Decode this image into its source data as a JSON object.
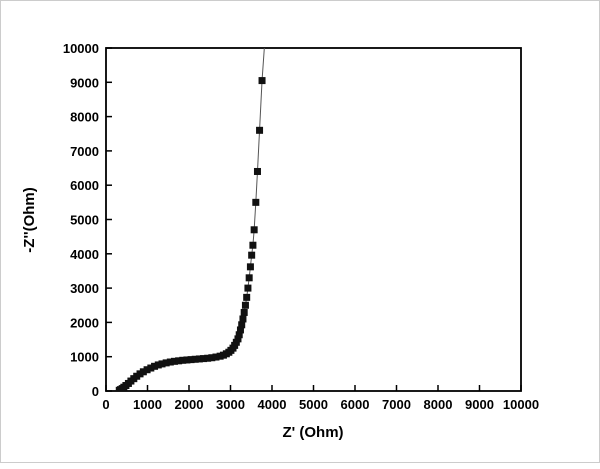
{
  "figure": {
    "background": "#ffffff",
    "frame_color": "#000000"
  },
  "chart_data": {
    "type": "scatter",
    "title": "",
    "xlabel": "Z' (Ohm)",
    "ylabel": "-Z''(Ohm)",
    "xlim": [
      0,
      10000
    ],
    "ylim": [
      0,
      10000
    ],
    "xticks": [
      0,
      1000,
      2000,
      3000,
      4000,
      5000,
      6000,
      7000,
      8000,
      9000,
      10000
    ],
    "yticks": [
      0,
      1000,
      2000,
      3000,
      4000,
      5000,
      6000,
      7000,
      8000,
      9000,
      10000
    ],
    "grid": false,
    "legend": "none",
    "marker": "square",
    "marker_size": 7,
    "marker_color": "#111111",
    "line_color": "#555555",
    "series": [
      {
        "name": "impedance-sweep",
        "points": [
          [
            320,
            20
          ],
          [
            350,
            40
          ],
          [
            390,
            70
          ],
          [
            430,
            110
          ],
          [
            480,
            160
          ],
          [
            540,
            220
          ],
          [
            600,
            290
          ],
          [
            670,
            360
          ],
          [
            740,
            430
          ],
          [
            820,
            500
          ],
          [
            900,
            560
          ],
          [
            990,
            620
          ],
          [
            1080,
            670
          ],
          [
            1170,
            720
          ],
          [
            1260,
            760
          ],
          [
            1350,
            790
          ],
          [
            1450,
            820
          ],
          [
            1550,
            845
          ],
          [
            1650,
            865
          ],
          [
            1750,
            880
          ],
          [
            1850,
            895
          ],
          [
            1950,
            905
          ],
          [
            2050,
            915
          ],
          [
            2150,
            925
          ],
          [
            2250,
            935
          ],
          [
            2350,
            945
          ],
          [
            2450,
            955
          ],
          [
            2550,
            970
          ],
          [
            2650,
            990
          ],
          [
            2750,
            1015
          ],
          [
            2830,
            1045
          ],
          [
            2900,
            1085
          ],
          [
            2960,
            1130
          ],
          [
            3010,
            1185
          ],
          [
            3060,
            1250
          ],
          [
            3100,
            1330
          ],
          [
            3140,
            1420
          ],
          [
            3180,
            1520
          ],
          [
            3210,
            1640
          ],
          [
            3240,
            1780
          ],
          [
            3270,
            1930
          ],
          [
            3300,
            2100
          ],
          [
            3330,
            2290
          ],
          [
            3360,
            2500
          ],
          [
            3390,
            2730
          ],
          [
            3420,
            3000
          ],
          [
            3450,
            3300
          ],
          [
            3480,
            3620
          ],
          [
            3510,
            3960
          ],
          [
            3540,
            4250
          ],
          [
            3570,
            4700
          ],
          [
            3610,
            5500
          ],
          [
            3650,
            6400
          ],
          [
            3700,
            7600
          ],
          [
            3760,
            9050
          ],
          [
            3850,
            10600
          ]
        ]
      }
    ]
  }
}
